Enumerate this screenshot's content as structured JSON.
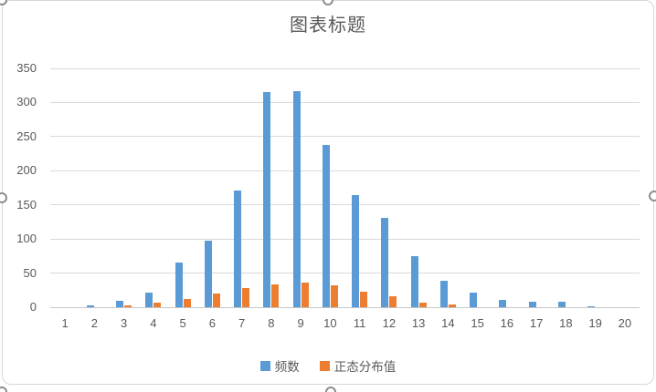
{
  "chart_data": {
    "type": "bar",
    "title": "图表标题",
    "categories": [
      "1",
      "2",
      "3",
      "4",
      "5",
      "6",
      "7",
      "8",
      "9",
      "10",
      "11",
      "12",
      "13",
      "14",
      "15",
      "16",
      "17",
      "18",
      "19",
      "20"
    ],
    "series": [
      {
        "name": "频数",
        "color": "#5B9BD5",
        "values": [
          0,
          3,
          10,
          21,
          65,
          97,
          171,
          315,
          317,
          238,
          165,
          131,
          75,
          39,
          22,
          11,
          8,
          8,
          2,
          0
        ]
      },
      {
        "name": "正态分布值",
        "color": "#ED7D31",
        "values": [
          0,
          0,
          3,
          7,
          12,
          20,
          28,
          34,
          36,
          32,
          23,
          16,
          7,
          4,
          0,
          0,
          0,
          0,
          0,
          0
        ]
      }
    ],
    "xlabel": "",
    "ylabel": "",
    "ylim": [
      0,
      350
    ],
    "yticks": [
      0,
      50,
      100,
      150,
      200,
      250,
      300,
      350
    ],
    "grid": true,
    "legend_position": "bottom"
  },
  "colors": {
    "series_1": "#5B9BD5",
    "series_2": "#ED7D31",
    "gridline": "#D9D9D9",
    "axis_text": "#595959",
    "title_text": "#595959",
    "frame_border": "#D6D6D6"
  }
}
